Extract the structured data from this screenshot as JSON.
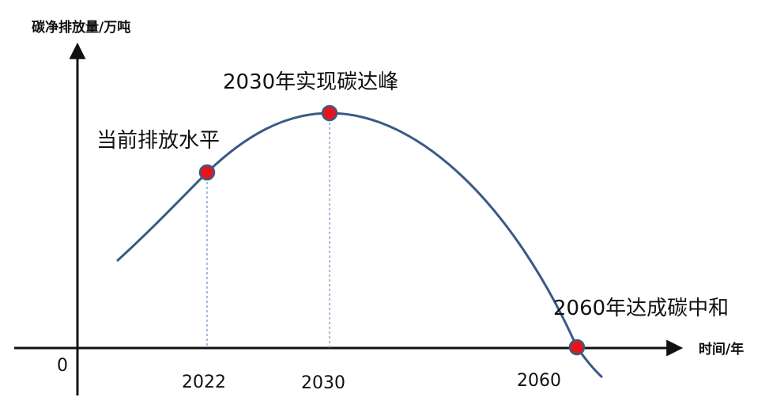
{
  "chart_data": {
    "type": "line",
    "title": "",
    "xlabel": "时间/年",
    "ylabel": "碳净排放量/万吨",
    "origin_label": "0",
    "x_ticks": [
      "2022",
      "2030",
      "2060"
    ],
    "curve_color": "#3b5a85",
    "point_color": "#e8141c",
    "points": [
      {
        "year": "2022",
        "label": "当前排放水平"
      },
      {
        "year": "2030",
        "label": "2030年实现碳达峰"
      },
      {
        "year": "2060",
        "label": "2060年达成碳中和"
      }
    ]
  }
}
